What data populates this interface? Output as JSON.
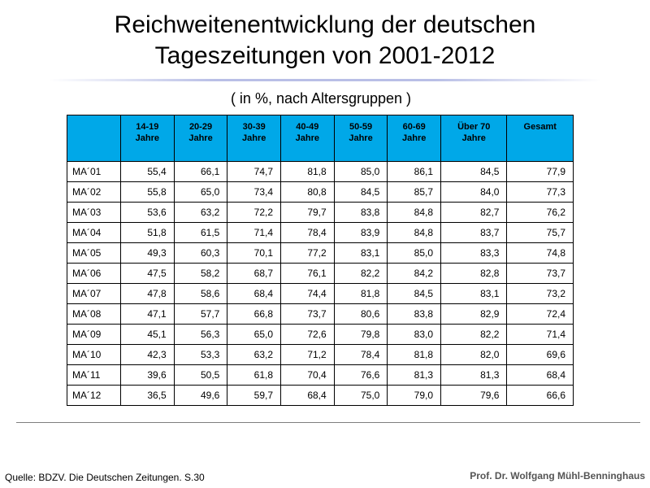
{
  "slide": {
    "title_line1": "Reichweitenentwicklung der deutschen",
    "title_line2": "Tageszeitungen von 2001-2012",
    "subtitle": "( in %, nach Altersgruppen )",
    "source": "Quelle: BDZV. Die Deutschen Zeitungen. S.30",
    "author": "Prof. Dr. Wolfgang Mühl-Benninghaus"
  },
  "table": {
    "header_color": "#00a8e8",
    "columns": [
      {
        "line1": "14-19",
        "line2": "Jahre"
      },
      {
        "line1": "20-29",
        "line2": "Jahre"
      },
      {
        "line1": "30-39",
        "line2": "Jahre"
      },
      {
        "line1": "40-49",
        "line2": "Jahre"
      },
      {
        "line1": "50-59",
        "line2": "Jahre"
      },
      {
        "line1": "60-69",
        "line2": "Jahre"
      },
      {
        "line1": "Über 70",
        "line2": "Jahre"
      },
      {
        "line1": "Gesamt",
        "line2": ""
      }
    ],
    "rows": [
      {
        "label": "MA´01",
        "values": [
          "55,4",
          "66,1",
          "74,7",
          "81,8",
          "85,0",
          "86,1",
          "84,5",
          "77,9"
        ]
      },
      {
        "label": "MA´02",
        "values": [
          "55,8",
          "65,0",
          "73,4",
          "80,8",
          "84,5",
          "85,7",
          "84,0",
          "77,3"
        ]
      },
      {
        "label": "MA´03",
        "values": [
          "53,6",
          "63,2",
          "72,2",
          "79,7",
          "83,8",
          "84,8",
          "82,7",
          "76,2"
        ]
      },
      {
        "label": "MA´04",
        "values": [
          "51,8",
          "61,5",
          "71,4",
          "78,4",
          "83,9",
          "84,8",
          "83,7",
          "75,7"
        ]
      },
      {
        "label": "MA´05",
        "values": [
          "49,3",
          "60,3",
          "70,1",
          "77,2",
          "83,1",
          "85,0",
          "83,3",
          "74,8"
        ]
      },
      {
        "label": "MA´06",
        "values": [
          "47,5",
          "58,2",
          "68,7",
          "76,1",
          "82,2",
          "84,2",
          "82,8",
          "73,7"
        ]
      },
      {
        "label": "MA´07",
        "values": [
          "47,8",
          "58,6",
          "68,4",
          "74,4",
          "81,8",
          "84,5",
          "83,1",
          "73,2"
        ]
      },
      {
        "label": "MA´08",
        "values": [
          "47,1",
          "57,7",
          "66,8",
          "73,7",
          "80,6",
          "83,8",
          "82,9",
          "72,4"
        ]
      },
      {
        "label": "MA´09",
        "values": [
          "45,1",
          "56,3",
          "65,0",
          "72,6",
          "79,8",
          "83,0",
          "82,2",
          "71,4"
        ]
      },
      {
        "label": "MA´10",
        "values": [
          "42,3",
          "53,3",
          "63,2",
          "71,2",
          "78,4",
          "81,8",
          "82,0",
          "69,6"
        ]
      },
      {
        "label": "MA´11",
        "values": [
          "39,6",
          "50,5",
          "61,8",
          "70,4",
          "76,6",
          "81,3",
          "81,3",
          "68,4"
        ]
      },
      {
        "label": "MA´12",
        "values": [
          "36,5",
          "49,6",
          "59,7",
          "68,4",
          "75,0",
          "79,0",
          "79,6",
          "66,6"
        ]
      }
    ]
  }
}
